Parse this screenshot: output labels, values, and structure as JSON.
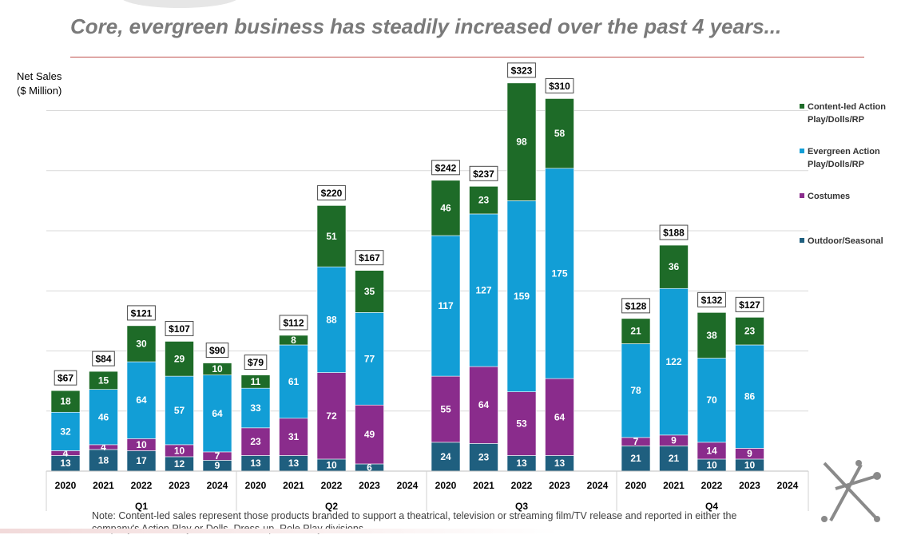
{
  "header": {
    "title": "Core, evergreen business has steadily increased over the past 4 years..."
  },
  "axis": {
    "ylabel_line1": "Net Sales",
    "ylabel_line2": "($ Million)"
  },
  "note": "Note: Content-led sales represent those products branded to support a theatrical, television or streaming film/TV release and reported in either the company's Action Play or Dolls, Dress-up, Role Play divisions.",
  "chart_data": {
    "type": "bar",
    "stacked": true,
    "ylim": [
      0,
      340
    ],
    "grid": true,
    "legend_position": "right",
    "groups": [
      {
        "label": "Q1",
        "years": [
          "2020",
          "2021",
          "2022",
          "2023",
          "2024"
        ]
      },
      {
        "label": "Q2",
        "years": [
          "2020",
          "2021",
          "2022",
          "2023",
          "2024"
        ]
      },
      {
        "label": "Q3",
        "years": [
          "2020",
          "2021",
          "2022",
          "2023",
          "2024"
        ]
      },
      {
        "label": "Q4",
        "years": [
          "2020",
          "2021",
          "2022",
          "2023",
          "2024"
        ]
      }
    ],
    "series": [
      {
        "name": "Outdoor/Seasonal",
        "color": "#1f5f7f",
        "values": [
          [
            13,
            18,
            17,
            12,
            9
          ],
          [
            13,
            13,
            10,
            6,
            null
          ],
          [
            24,
            23,
            13,
            13,
            null
          ],
          [
            21,
            21,
            10,
            10,
            null
          ]
        ]
      },
      {
        "name": "Costumes",
        "color": "#8a2c8c",
        "values": [
          [
            4,
            4,
            10,
            10,
            7
          ],
          [
            23,
            31,
            72,
            49,
            null
          ],
          [
            55,
            64,
            53,
            64,
            null
          ],
          [
            7,
            9,
            14,
            9,
            null
          ]
        ]
      },
      {
        "name": "Evergreen Action Play/Dolls/RP",
        "color": "#129ed6",
        "values": [
          [
            32,
            46,
            64,
            57,
            64
          ],
          [
            33,
            61,
            88,
            77,
            null
          ],
          [
            117,
            127,
            159,
            175,
            null
          ],
          [
            78,
            122,
            70,
            86,
            null
          ]
        ]
      },
      {
        "name": "Content-led Action Play/Dolls/RP",
        "color": "#1e6b28",
        "values": [
          [
            18,
            15,
            30,
            29,
            10
          ],
          [
            11,
            8,
            51,
            35,
            null
          ],
          [
            46,
            23,
            98,
            58,
            null
          ],
          [
            21,
            36,
            38,
            23,
            null
          ]
        ]
      }
    ],
    "totals": [
      [
        "$67",
        "$84",
        "$121",
        "$107",
        "$90"
      ],
      [
        "$79",
        "$112",
        "$220",
        "$167",
        null
      ],
      [
        "$242",
        "$237",
        "$323",
        "$310",
        null
      ],
      [
        "$128",
        "$188",
        "$132",
        "$127",
        null
      ]
    ],
    "legend": [
      {
        "line1": "Content-led Action",
        "line2": "Play/Dolls/RP",
        "color": "#1e6b28"
      },
      {
        "line1": "Evergreen Action",
        "line2": "Play/Dolls/RP",
        "color": "#129ed6"
      },
      {
        "line1": "Costumes",
        "line2": "",
        "color": "#8a2c8c"
      },
      {
        "line1": "Outdoor/Seasonal",
        "line2": "",
        "color": "#1f5f7f"
      }
    ]
  }
}
